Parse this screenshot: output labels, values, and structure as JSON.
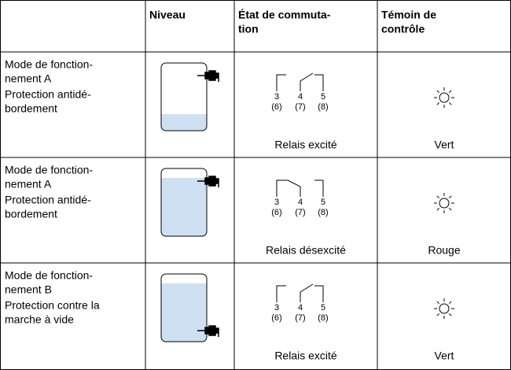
{
  "header": {
    "level": "Niveau",
    "switching": [
      "État de commuta-",
      "tion"
    ],
    "indicator": [
      "Témoin de",
      "contrôle"
    ]
  },
  "rows": [
    {
      "mode": [
        "Mode de fonction-",
        "nement A"
      ],
      "application": [
        "Protection antidé-",
        "bordement"
      ],
      "terminals": {
        "top": [
          "3",
          "4",
          "5"
        ],
        "bottom": [
          "(6)",
          "(7)",
          "(8)"
        ]
      },
      "relay": "Relais excité",
      "lamp": "Vert"
    },
    {
      "mode": [
        "Mode de fonction-",
        "nement A"
      ],
      "application": [
        "Protection antidé-",
        "bordement"
      ],
      "terminals": {
        "top": [
          "3",
          "4",
          "5"
        ],
        "bottom": [
          "(6)",
          "(7)",
          "(8)"
        ]
      },
      "relay": "Relais désexcité",
      "lamp": "Rouge"
    },
    {
      "mode": [
        "Mode de fonction-",
        "nement B"
      ],
      "application": [
        "Protection contre la",
        "marche à vide"
      ],
      "terminals": {
        "top": [
          "3",
          "4",
          "5"
        ],
        "bottom": [
          "(6)",
          "(7)",
          "(8)"
        ]
      },
      "relay": "Relais excité",
      "lamp": "Vert"
    }
  ]
}
